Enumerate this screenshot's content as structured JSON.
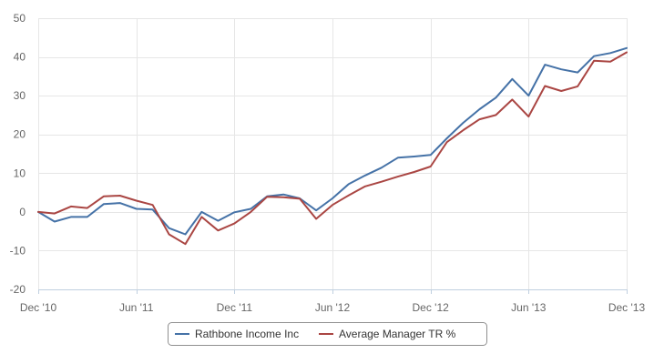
{
  "chart_data": {
    "type": "line",
    "title": "",
    "xlabel": "",
    "ylabel": "",
    "ylim": [
      -20,
      50
    ],
    "yticks": [
      -20,
      -10,
      0,
      10,
      20,
      30,
      40,
      50
    ],
    "x_tick_labels": [
      "Dec '10",
      "Jun '11",
      "Dec '11",
      "Jun '12",
      "Dec '12",
      "Jun '13",
      "Dec '13"
    ],
    "x_tick_months": [
      0,
      6,
      12,
      18,
      24,
      30,
      36
    ],
    "grid": true,
    "legend": "bottom-center",
    "x_months": [
      0,
      1,
      2,
      3,
      4,
      5,
      6,
      7,
      8,
      9,
      10,
      11,
      12,
      13,
      14,
      15,
      16,
      17,
      18,
      19,
      20,
      21,
      22,
      23,
      24,
      25,
      26,
      27,
      28,
      29,
      30,
      31,
      32,
      33,
      34,
      35,
      36
    ],
    "series": [
      {
        "name": "Rathbone Income Inc",
        "color": "#4572a7",
        "values": [
          0,
          -2.5,
          -1.3,
          -1.3,
          2.0,
          2.3,
          0.8,
          0.6,
          -4.2,
          -5.8,
          0.0,
          -2.3,
          -0.1,
          0.8,
          4.0,
          4.5,
          3.5,
          0.4,
          3.5,
          7.2,
          9.4,
          11.4,
          14.0,
          14.3,
          14.7,
          19.0,
          23.0,
          26.5,
          29.5,
          34.3,
          30.0,
          38.0,
          36.8,
          36.0,
          40.2,
          41.0,
          42.3
        ]
      },
      {
        "name": "Average Manager TR %",
        "color": "#aa4643",
        "values": [
          0,
          -0.4,
          1.4,
          1.0,
          4.0,
          4.2,
          2.9,
          1.8,
          -5.8,
          -8.3,
          -1.3,
          -4.8,
          -3.0,
          0.0,
          3.9,
          3.8,
          3.4,
          -1.8,
          1.8,
          4.3,
          6.6,
          7.8,
          9.1,
          10.3,
          11.7,
          18.0,
          21.1,
          23.9,
          25.0,
          29.0,
          24.6,
          32.5,
          31.2,
          32.4,
          39.0,
          38.8,
          41.2
        ]
      }
    ]
  }
}
